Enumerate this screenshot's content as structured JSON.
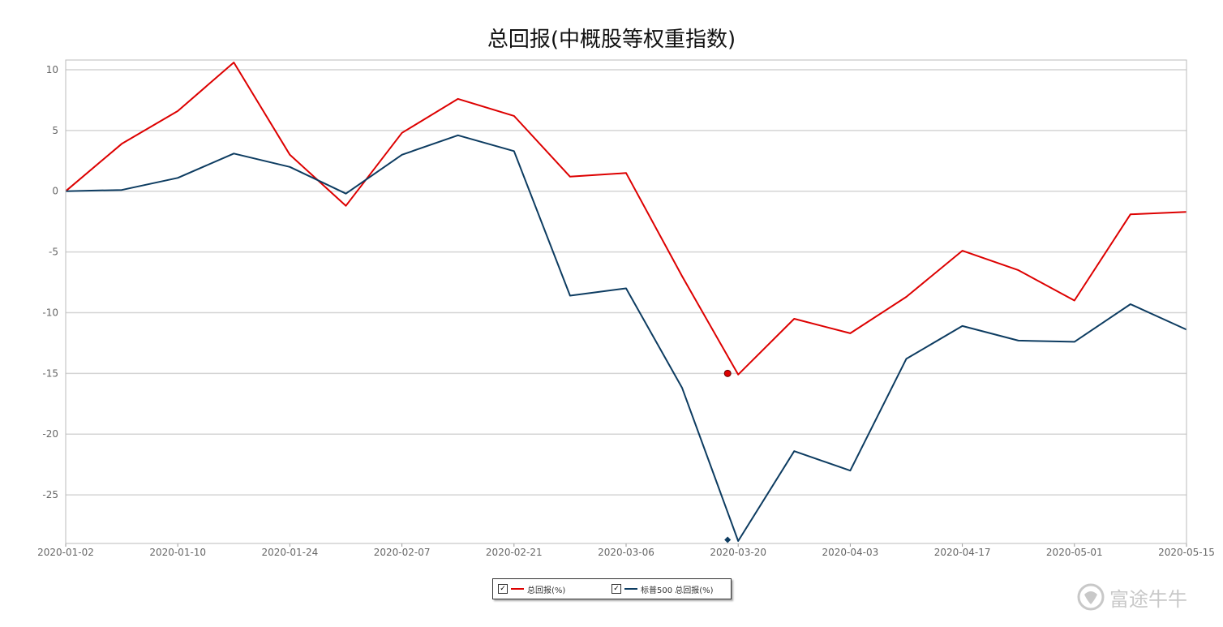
{
  "watermark": {
    "text": "富途牛牛",
    "icon": "futu-bull-logo-icon"
  },
  "chart_data": {
    "type": "line",
    "title": "总回报(中概股等权重指数)",
    "xlabel": "",
    "ylabel": "",
    "ylim": [
      -29,
      10.8
    ],
    "yticks": [
      10,
      5,
      0,
      -5,
      -10,
      -15,
      -20,
      -25
    ],
    "grid": true,
    "legend_position": "bottom-center",
    "x": [
      "2020-01-02",
      "2020-01-03",
      "2020-01-10",
      "2020-01-17",
      "2020-01-24",
      "2020-01-31",
      "2020-02-07",
      "2020-02-14",
      "2020-02-21",
      "2020-02-28",
      "2020-03-06",
      "2020-03-13",
      "2020-03-20",
      "2020-03-27",
      "2020-04-03",
      "2020-04-10",
      "2020-04-17",
      "2020-04-24",
      "2020-05-01",
      "2020-05-08",
      "2020-05-15"
    ],
    "xticks": [
      "2020-01-02",
      "2020-01-10",
      "2020-01-24",
      "2020-02-07",
      "2020-02-21",
      "2020-03-06",
      "2020-03-20",
      "2020-04-03",
      "2020-04-17",
      "2020-05-01",
      "2020-05-15"
    ],
    "x_index": [
      0,
      1,
      2,
      3,
      4,
      5,
      6,
      7,
      8,
      9,
      10,
      11,
      12,
      13,
      14,
      15,
      16,
      17,
      18,
      19,
      20
    ],
    "xtick_index": [
      0,
      2,
      4,
      6,
      8,
      10,
      12,
      14,
      16,
      18,
      20
    ],
    "series": [
      {
        "name": "总回报(%)",
        "color": "#dd0000",
        "values": [
          0,
          3.9,
          6.6,
          10.6,
          3.0,
          -1.2,
          4.8,
          7.6,
          6.2,
          1.2,
          1.5,
          -7.0,
          -15.1,
          -10.5,
          -11.7,
          -8.7,
          -4.9,
          -6.5,
          -9.0,
          -1.9,
          -1.7
        ],
        "marker": {
          "x": "2020-03-20",
          "value": -15.0,
          "shape": "circle"
        }
      },
      {
        "name": "标普500 总回报(%)",
        "color": "#0d3c61",
        "values": [
          0,
          0.1,
          1.1,
          3.1,
          2.0,
          -0.2,
          3.0,
          4.6,
          3.3,
          -8.6,
          -8.0,
          -16.2,
          -28.8,
          -21.4,
          -23.0,
          -13.8,
          -11.1,
          -12.3,
          -12.4,
          -9.3,
          -11.4
        ],
        "marker": {
          "x": "2020-03-20",
          "value": -28.7,
          "shape": "diamond"
        }
      }
    ]
  }
}
